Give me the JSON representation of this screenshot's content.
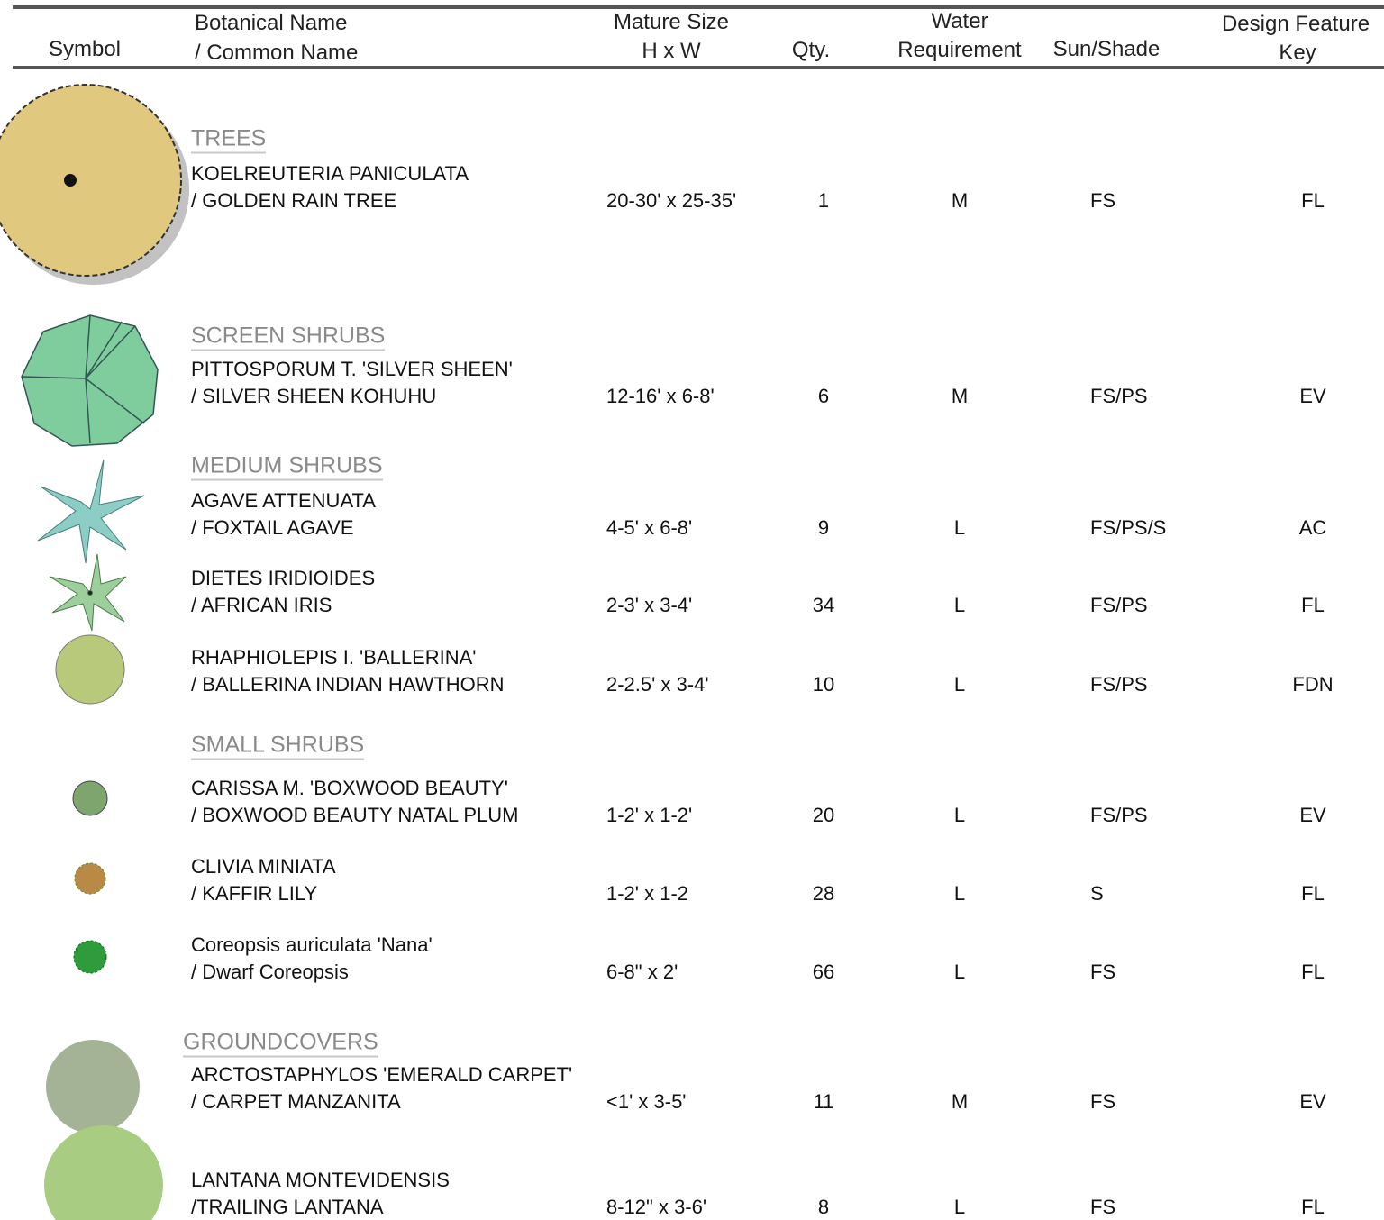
{
  "header": {
    "symbol": "Symbol",
    "name": [
      "Botanical Name",
      "/ Common Name"
    ],
    "size": [
      "Mature Size",
      "H x W"
    ],
    "qty": "Qty.",
    "water": [
      "Water",
      "Requirement"
    ],
    "sun": "Sun/Shade",
    "key": [
      "Design Feature",
      "Key"
    ]
  },
  "groups": [
    {
      "title": "TREES",
      "plants": [
        {
          "botanical": "KOELREUTERIA PANICULATA",
          "common": "/ GOLDEN RAIN TREE",
          "size": "20-30' x 25-35'",
          "qty": 1,
          "water": "M",
          "sun": "FS",
          "key": "FL"
        }
      ]
    },
    {
      "title": "SCREEN SHRUBS",
      "plants": [
        {
          "botanical": "PITTOSPORUM T. 'SILVER SHEEN'",
          "common": "/ SILVER SHEEN KOHUHU",
          "size": "12-16' x 6-8'",
          "qty": 6,
          "water": "M",
          "sun": "FS/PS",
          "key": "EV"
        }
      ]
    },
    {
      "title": "MEDIUM SHRUBS",
      "plants": [
        {
          "botanical": "AGAVE ATTENUATA",
          "common": "/ FOXTAIL AGAVE",
          "size": "4-5' x 6-8'",
          "qty": 9,
          "water": "L",
          "sun": "FS/PS/S",
          "key": "AC"
        },
        {
          "botanical": "DIETES IRIDIOIDES",
          "common": "/ AFRICAN IRIS",
          "size": "2-3' x 3-4'",
          "qty": 34,
          "water": "L",
          "sun": "FS/PS",
          "key": "FL"
        },
        {
          "botanical": "RHAPHIOLEPIS I. 'BALLERINA'",
          "common": "/ BALLERINA INDIAN HAWTHORN",
          "size": "2-2.5' x 3-4'",
          "qty": 10,
          "water": "L",
          "sun": "FS/PS",
          "key": "FDN"
        }
      ]
    },
    {
      "title": "SMALL SHRUBS",
      "plants": [
        {
          "botanical": "CARISSA M. 'BOXWOOD BEAUTY'",
          "common": "/ BOXWOOD BEAUTY NATAL PLUM",
          "size": "1-2' x 1-2'",
          "qty": 20,
          "water": "L",
          "sun": "FS/PS",
          "key": "EV"
        },
        {
          "botanical": "CLIVIA MINIATA",
          "common": "/ KAFFIR LILY",
          "size": "1-2' x 1-2",
          "qty": 28,
          "water": "L",
          "sun": "S",
          "key": "FL"
        },
        {
          "botanical": "Coreopsis auriculata 'Nana'",
          "common": "/ Dwarf Coreopsis",
          "size": "6-8\" x 2'",
          "qty": 66,
          "water": "L",
          "sun": "FS",
          "key": "FL"
        }
      ]
    },
    {
      "title": "GROUNDCOVERS",
      "plants": [
        {
          "botanical": "ARCTOSTAPHYLOS 'EMERALD CARPET'",
          "common": "/ CARPET MANZANITA",
          "size": "<1' x 3-5'",
          "qty": 11,
          "water": "M",
          "sun": "FS",
          "key": "EV"
        },
        {
          "botanical": "LANTANA MONTEVIDENSIS",
          "common": "/TRAILING LANTANA",
          "size": "8-12\" x 3-6'",
          "qty": 8,
          "water": "L",
          "sun": "FS",
          "key": "FL"
        }
      ]
    }
  ]
}
